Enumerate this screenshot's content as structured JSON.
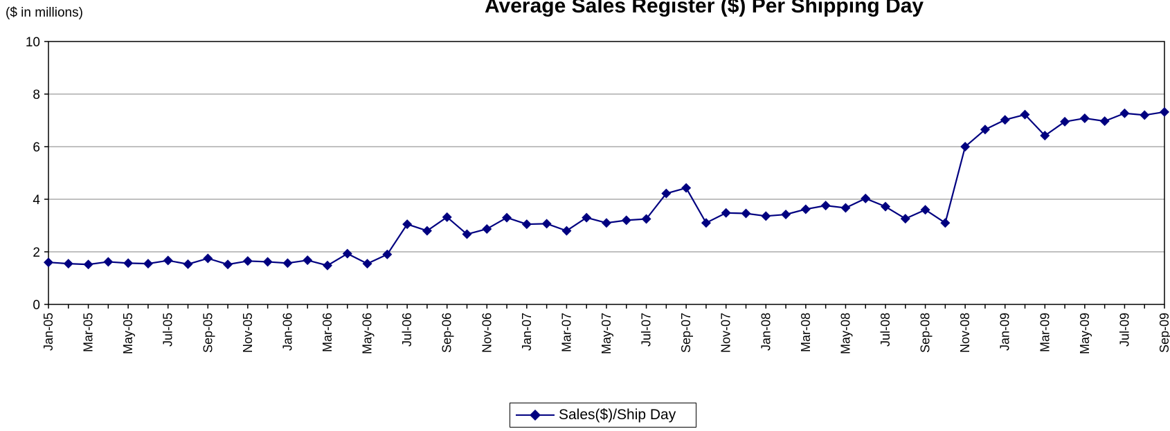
{
  "chart_data": {
    "type": "line",
    "title": "Average Sales Register ($) Per Shipping Day",
    "ylabel": "($ in millions)",
    "xlabel": "",
    "ylim": [
      0,
      10
    ],
    "yticks": [
      0,
      2,
      4,
      6,
      8,
      10
    ],
    "grid": true,
    "legend_position": "bottom",
    "colors": {
      "series": "#000080",
      "grid": "#808080",
      "axis": "#000000"
    },
    "x": [
      "Jan-05",
      "Feb-05",
      "Mar-05",
      "Apr-05",
      "May-05",
      "Jun-05",
      "Jul-05",
      "Aug-05",
      "Sep-05",
      "Oct-05",
      "Nov-05",
      "Dec-05",
      "Jan-06",
      "Feb-06",
      "Mar-06",
      "Apr-06",
      "May-06",
      "Jun-06",
      "Jul-06",
      "Aug-06",
      "Sep-06",
      "Oct-06",
      "Nov-06",
      "Dec-06",
      "Jan-07",
      "Feb-07",
      "Mar-07",
      "Apr-07",
      "May-07",
      "Jun-07",
      "Jul-07",
      "Aug-07",
      "Sep-07",
      "Oct-07",
      "Nov-07",
      "Dec-07",
      "Jan-08",
      "Feb-08",
      "Mar-08",
      "Apr-08",
      "May-08",
      "Jun-08",
      "Jul-08",
      "Aug-08",
      "Sep-08",
      "Oct-08",
      "Nov-08",
      "Dec-08",
      "Jan-09",
      "Feb-09",
      "Mar-09",
      "Apr-09",
      "May-09",
      "Jun-09",
      "Jul-09",
      "Aug-09",
      "Sep-09"
    ],
    "x_tick_labels": [
      "Jan-05",
      "Mar-05",
      "May-05",
      "Jul-05",
      "Sep-05",
      "Nov-05",
      "Jan-06",
      "Mar-06",
      "May-06",
      "Jul-06",
      "Sep-06",
      "Nov-06",
      "Jan-07",
      "Mar-07",
      "May-07",
      "Jul-07",
      "Sep-07",
      "Nov-07",
      "Jan-08",
      "Mar-08",
      "May-08",
      "Jul-08",
      "Sep-08",
      "Nov-08",
      "Jan-09",
      "Mar-09",
      "May-09",
      "Jul-09",
      "Sep-09"
    ],
    "series": [
      {
        "name": "Sales($)/Ship Day",
        "marker": "diamond",
        "values": [
          1.6,
          1.55,
          1.52,
          1.62,
          1.57,
          1.55,
          1.67,
          1.53,
          1.75,
          1.52,
          1.65,
          1.62,
          1.57,
          1.68,
          1.48,
          1.93,
          1.55,
          1.9,
          3.05,
          2.8,
          3.32,
          2.67,
          2.87,
          3.3,
          3.05,
          3.07,
          2.8,
          3.3,
          3.1,
          3.2,
          3.25,
          4.22,
          4.43,
          3.1,
          3.48,
          3.46,
          3.36,
          3.42,
          3.62,
          3.76,
          3.67,
          4.03,
          3.72,
          3.26,
          3.6,
          3.1,
          6.0,
          6.65,
          7.02,
          7.22,
          6.42,
          6.95,
          7.08,
          6.97,
          7.27,
          7.2,
          7.32
        ]
      }
    ]
  }
}
